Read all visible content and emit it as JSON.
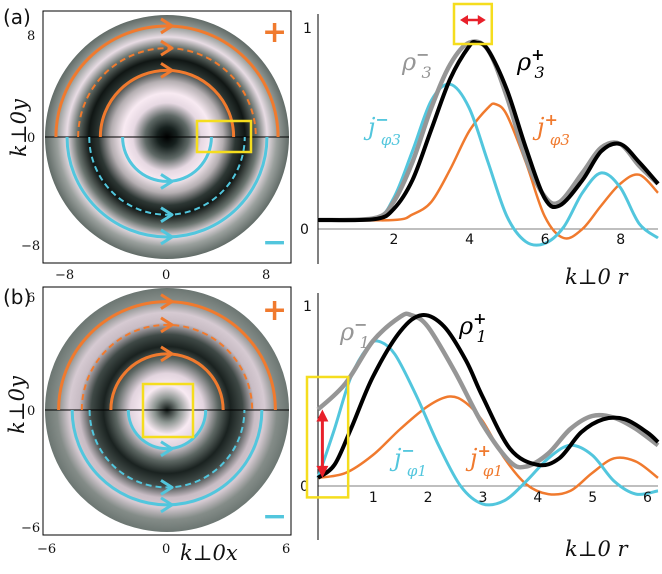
{
  "colors": {
    "orange": "#f07a2e",
    "cyan": "#52c6dd",
    "gray": "#969696",
    "black": "#000000",
    "yellow": "#f5dd1e",
    "red": "#e8202a"
  },
  "chart_data": [
    {
      "panel": "(a)",
      "type": "heatmap",
      "xlabel": "k⊥0x",
      "ylabel": "k⊥0y",
      "xticks": [
        "−8",
        "0",
        "8"
      ],
      "yticks": [
        "8",
        "0",
        "−8"
      ],
      "xlim": [
        -9,
        9
      ],
      "ylim": [
        -9,
        9
      ],
      "signs": {
        "upper": "+",
        "lower": "−"
      },
      "orbits_upper_radius": [
        8.0,
        6.4,
        4.8
      ],
      "orbits_lower_radius": [
        7.2,
        5.6,
        3.2
      ]
    },
    {
      "panel": "(a)",
      "type": "line",
      "xlabel": "k⊥0 r",
      "xticks": [
        "2",
        "4",
        "6",
        "8"
      ],
      "yticks": [
        "0",
        "1"
      ],
      "xlim": [
        0,
        9
      ],
      "ylim": [
        -0.05,
        1.05
      ],
      "series": [
        {
          "name": "ρ3−",
          "label": {
            "base": "ρ",
            "sub": "3",
            "sup": "−"
          },
          "x": [
            0,
            1.5,
            2.0,
            2.5,
            3.0,
            3.5,
            4.0,
            4.5,
            5.0,
            5.5,
            6.0,
            6.4,
            7.0,
            7.5,
            8.0,
            8.5,
            9.0
          ],
          "values": [
            0,
            0.01,
            0.1,
            0.32,
            0.62,
            0.86,
            0.98,
            0.94,
            0.68,
            0.34,
            0.13,
            0.1,
            0.26,
            0.4,
            0.42,
            0.3,
            0.2
          ]
        },
        {
          "name": "ρ3+",
          "label": {
            "base": "ρ",
            "sub": "3",
            "sup": "+"
          },
          "x": [
            0,
            1.5,
            2.0,
            2.5,
            3.0,
            3.5,
            4.0,
            4.2,
            4.5,
            5.0,
            5.5,
            6.0,
            6.4,
            7.0,
            7.5,
            8.0,
            8.5,
            9.0
          ],
          "values": [
            0,
            0.005,
            0.06,
            0.22,
            0.5,
            0.78,
            0.96,
            0.98,
            0.94,
            0.72,
            0.4,
            0.12,
            0.08,
            0.22,
            0.38,
            0.42,
            0.32,
            0.2
          ]
        },
        {
          "name": "jφ3−",
          "label": {
            "base": "j",
            "sub": "φ3",
            "sup": "−"
          },
          "x": [
            0,
            1.5,
            2.0,
            2.5,
            3.0,
            3.5,
            4.0,
            4.5,
            5.0,
            5.5,
            6.0,
            6.5,
            7.0,
            7.5,
            8.0,
            8.5,
            9.0
          ],
          "values": [
            0,
            0.01,
            0.12,
            0.38,
            0.66,
            0.75,
            0.62,
            0.32,
            0.02,
            -0.12,
            -0.13,
            -0.04,
            0.15,
            0.26,
            0.18,
            -0.02,
            -0.1
          ]
        },
        {
          "name": "jφ3+",
          "label": {
            "base": "j",
            "sub": "φ3",
            "sup": "+"
          },
          "x": [
            0,
            2.0,
            2.5,
            3.0,
            3.5,
            4.0,
            4.5,
            4.7,
            5.0,
            5.5,
            6.0,
            6.5,
            7.0,
            7.5,
            8.0,
            8.5,
            9.0
          ],
          "values": [
            0,
            0.0,
            0.03,
            0.1,
            0.28,
            0.49,
            0.62,
            0.64,
            0.58,
            0.32,
            0.02,
            -0.1,
            -0.05,
            0.08,
            0.2,
            0.25,
            0.15
          ]
        }
      ],
      "highlight_box_x": [
        3.6,
        4.6
      ]
    },
    {
      "panel": "(b)",
      "type": "heatmap",
      "xlabel": "k⊥0x",
      "ylabel": "k⊥0y",
      "xticks": [
        "−6",
        "0",
        "6"
      ],
      "yticks": [
        "6",
        "0",
        "−6"
      ],
      "xlim": [
        -6.5,
        6.5
      ],
      "ylim": [
        -6.5,
        6.5
      ],
      "signs": {
        "upper": "+",
        "lower": "−"
      },
      "orbits_upper_radius": [
        5.6,
        4.4,
        2.9
      ],
      "orbits_lower_radius": [
        4.9,
        4.0,
        2.0
      ]
    },
    {
      "panel": "(b)",
      "type": "line",
      "xlabel": "k⊥0 r",
      "xticks": [
        "1",
        "2",
        "3",
        "4",
        "5",
        "6"
      ],
      "yticks": [
        "0",
        "1"
      ],
      "xlim": [
        0,
        6.2
      ],
      "ylim": [
        -0.05,
        1.05
      ],
      "series": [
        {
          "name": "ρ1−",
          "label": {
            "base": "ρ",
            "sub": "1",
            "sup": "−"
          },
          "x": [
            0,
            0.5,
            1.0,
            1.5,
            1.7,
            2.0,
            2.5,
            3.0,
            3.5,
            3.8,
            4.2,
            4.6,
            5.0,
            5.4,
            5.8,
            6.2
          ],
          "values": [
            0.42,
            0.58,
            0.84,
            0.99,
            1.0,
            0.93,
            0.65,
            0.33,
            0.1,
            0.07,
            0.15,
            0.3,
            0.38,
            0.37,
            0.3,
            0.2
          ]
        },
        {
          "name": "ρ1+",
          "label": {
            "base": "ρ",
            "sub": "1",
            "sup": "+"
          },
          "x": [
            0,
            0.3,
            0.6,
            1.0,
            1.5,
            1.9,
            2.3,
            2.7,
            3.0,
            3.5,
            4.0,
            4.4,
            4.8,
            5.2,
            5.6,
            6.0,
            6.2
          ],
          "values": [
            0.0,
            0.08,
            0.3,
            0.62,
            0.9,
            1.0,
            0.93,
            0.72,
            0.5,
            0.18,
            0.08,
            0.12,
            0.28,
            0.36,
            0.36,
            0.28,
            0.22
          ]
        },
        {
          "name": "jφ1−",
          "label": {
            "base": "j",
            "sub": "φ1",
            "sup": "−"
          },
          "x": [
            0,
            0.3,
            0.6,
            0.9,
            1.1,
            1.4,
            1.8,
            2.2,
            2.6,
            3.0,
            3.4,
            3.8,
            4.2,
            4.6,
            5.0,
            5.4,
            5.8,
            6.2
          ],
          "values": [
            0,
            0.3,
            0.62,
            0.8,
            0.84,
            0.76,
            0.5,
            0.2,
            -0.05,
            -0.16,
            -0.14,
            -0.02,
            0.12,
            0.2,
            0.14,
            -0.02,
            -0.1,
            -0.08
          ]
        },
        {
          "name": "jφ1+",
          "label": {
            "base": "j",
            "sub": "φ1",
            "sup": "+"
          },
          "x": [
            0,
            0.5,
            1.0,
            1.5,
            2.0,
            2.4,
            2.7,
            3.0,
            3.4,
            3.8,
            4.2,
            4.6,
            5.0,
            5.4,
            5.8,
            6.2
          ],
          "values": [
            0,
            0.03,
            0.14,
            0.3,
            0.44,
            0.5,
            0.46,
            0.35,
            0.12,
            -0.04,
            -0.1,
            -0.08,
            0.03,
            0.12,
            0.1,
            0.0
          ]
        }
      ],
      "highlight_box_x": [
        0,
        0.55
      ]
    }
  ]
}
